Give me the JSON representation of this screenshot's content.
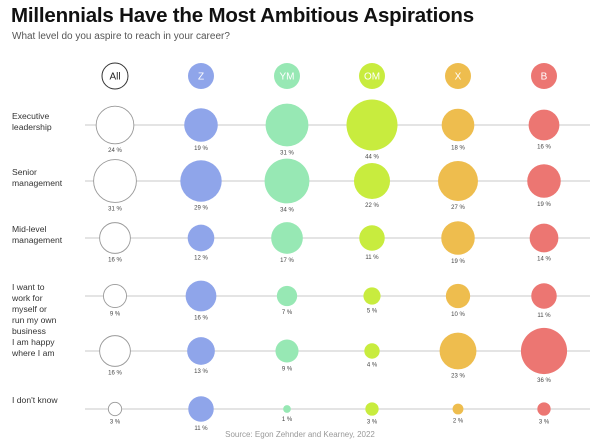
{
  "title": "Millennials Have the Most Ambitious Aspirations",
  "subtitle": "What level do you aspire to reach in your career?",
  "source": "Source: Egon Zehnder and Kearney, 2022",
  "chart_data": {
    "type": "bubble",
    "title": "Millennials Have the Most Ambitious Aspirations",
    "subtitle": "What level do you aspire to reach in your career?",
    "groups": [
      {
        "key": "All",
        "color": "#ffffff",
        "text_color": "#222222"
      },
      {
        "key": "Z",
        "color": "#8fa5ea",
        "text_color": "#ffffff"
      },
      {
        "key": "YM",
        "color": "#97e8b4",
        "text_color": "#ffffff"
      },
      {
        "key": "OM",
        "color": "#c8ec3e",
        "text_color": "#ffffff"
      },
      {
        "key": "X",
        "color": "#eebd4e",
        "text_color": "#ffffff"
      },
      {
        "key": "B",
        "color": "#ec7672",
        "text_color": "#ffffff"
      }
    ],
    "rows": [
      {
        "label": [
          "Executive",
          "leadership"
        ],
        "values": [
          24,
          19,
          31,
          44,
          18,
          16
        ]
      },
      {
        "label": [
          "Senior",
          "management"
        ],
        "values": [
          31,
          29,
          34,
          22,
          27,
          19
        ]
      },
      {
        "label": [
          "Mid-level",
          "management"
        ],
        "values": [
          16,
          12,
          17,
          11,
          19,
          14
        ]
      },
      {
        "label": [
          "I want to",
          "work for",
          "myself or",
          "run my own",
          "business"
        ],
        "values": [
          9,
          16,
          7,
          5,
          10,
          11
        ]
      },
      {
        "label": [
          "I am happy",
          "where I am"
        ],
        "values": [
          16,
          13,
          9,
          4,
          23,
          36
        ]
      },
      {
        "label": [
          "I don't know"
        ],
        "values": [
          3,
          11,
          1,
          3,
          2,
          3
        ]
      }
    ],
    "value_suffix": " %"
  }
}
